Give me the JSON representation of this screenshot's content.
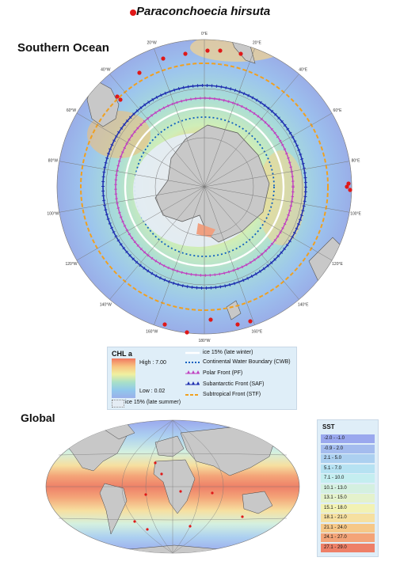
{
  "species_name": "Paraconchoecia hirsuta",
  "southern_ocean_title": "Southern Ocean",
  "global_title": "Global",
  "longitude_labels": [
    "0°E",
    "20°E",
    "40°E",
    "60°E",
    "80°E",
    "100°E",
    "120°E",
    "140°E",
    "160°E",
    "180°W",
    "160°W",
    "140°W",
    "120°W",
    "100°W",
    "80°W",
    "60°W",
    "40°W",
    "20°W"
  ],
  "chl_legend": {
    "title": "CHL a",
    "high": "High : 7.00",
    "low": "Low : 0.02",
    "ice_summer": "ice 15% (late summer)"
  },
  "line_legend": [
    {
      "label": "ice 15% (late winter)",
      "color": "#ffffff",
      "style": "solid"
    },
    {
      "label": "Continental Water Boundary (CWB)",
      "color": "#1060c0",
      "style": "dotted"
    },
    {
      "label": "Polar Front (PF)",
      "color": "#c040c0",
      "style": "triangles"
    },
    {
      "label": "Subantarctic Front (SAF)",
      "color": "#2030b0",
      "style": "triangles"
    },
    {
      "label": "Subtropical Front (STF)",
      "color": "#f0a020",
      "style": "dashed"
    }
  ],
  "sst_legend": {
    "title": "SST",
    "ranges": [
      {
        "label": "-2.0 - -1.0",
        "color": "#9aa8ee"
      },
      {
        "label": "-0.9 - 2.0",
        "color": "#a4bcee"
      },
      {
        "label": "2.1 - 5.0",
        "color": "#acd0f0"
      },
      {
        "label": "5.1 - 7.0",
        "color": "#b6e2f2"
      },
      {
        "label": "7.1 - 10.0",
        "color": "#c4eef0"
      },
      {
        "label": "10.1 - 13.0",
        "color": "#d4f0e0"
      },
      {
        "label": "13.1 - 15.0",
        "color": "#e4f2cc"
      },
      {
        "label": "15.1 - 18.0",
        "color": "#f2f2b4"
      },
      {
        "label": "18.1 - 21.0",
        "color": "#f6e0a0"
      },
      {
        "label": "21.1 - 24.0",
        "color": "#f6c888"
      },
      {
        "label": "24.1 - 27.0",
        "color": "#f4a478"
      },
      {
        "label": "27.1 - 29.0",
        "color": "#ee8068"
      }
    ]
  },
  "colors": {
    "occurrence": "#e01818",
    "land": "#c8c8c8",
    "ice": "#e4ecf4"
  }
}
